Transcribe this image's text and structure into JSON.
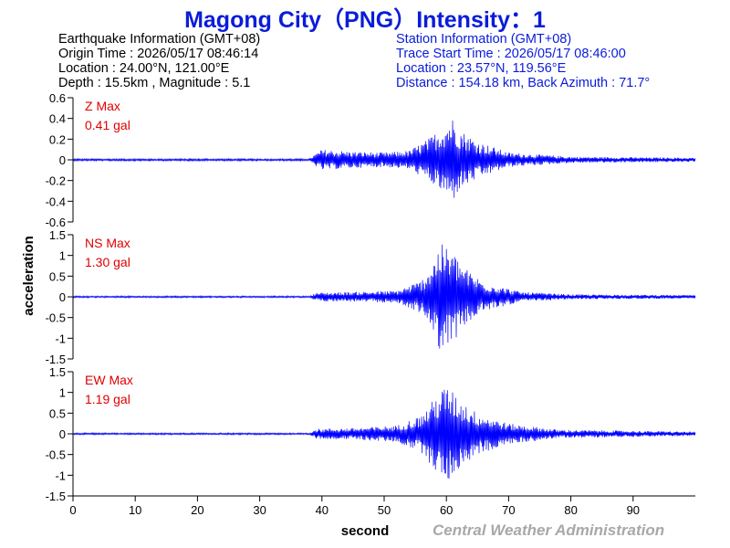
{
  "title": "Magong City（PNG）Intensity：1",
  "earthquake": {
    "header": "Earthquake Information  (GMT+08)",
    "origin_time": "Origin Time : 2026/05/17 08:46:14",
    "location": "Location : 24.00°N, 121.00°E",
    "depth_magnitude": "Depth : 15.5km , Magnitude : 5.1"
  },
  "station": {
    "header": "Station Information  (GMT+08)",
    "trace_start": "Trace Start Time : 2026/05/17 08:46:00",
    "location": "Location : 23.57°N, 119.56°E",
    "distance": "Distance : 154.18 km, Back Azimuth : 71.7°"
  },
  "credit": "Central Weather Administration",
  "colors": {
    "title": "#0a1cd9",
    "trace": "#0000ff",
    "label": "#e00000",
    "credit": "#a8a8a8"
  },
  "chart_data": {
    "type": "line",
    "xlabel": "second",
    "ylabel": "acceleration",
    "xlim": [
      0,
      100
    ],
    "xticks": [
      0,
      10,
      20,
      30,
      40,
      50,
      60,
      70,
      80,
      90
    ],
    "panels": [
      {
        "component": "Z",
        "label": "Z Max",
        "max_text": "0.41 gal",
        "max_value": 0.41,
        "ylim": [
          -0.6,
          0.6
        ],
        "yticks": [
          -0.6,
          -0.4,
          -0.2,
          0,
          0.2,
          0.4,
          0.6
        ],
        "envelope": [
          [
            0,
            0.01
          ],
          [
            38,
            0.01
          ],
          [
            39,
            0.06
          ],
          [
            40,
            0.1
          ],
          [
            45,
            0.08
          ],
          [
            50,
            0.07
          ],
          [
            54,
            0.09
          ],
          [
            57,
            0.2
          ],
          [
            59,
            0.3
          ],
          [
            61,
            0.41
          ],
          [
            62,
            0.3
          ],
          [
            65,
            0.18
          ],
          [
            70,
            0.07
          ],
          [
            80,
            0.03
          ],
          [
            100,
            0.02
          ]
        ]
      },
      {
        "component": "NS",
        "label": "NS Max",
        "max_text": "1.30 gal",
        "max_value": 1.3,
        "ylim": [
          -1.5,
          1.5
        ],
        "yticks": [
          -1.5,
          -1,
          -0.5,
          0,
          0.5,
          1,
          1.5
        ],
        "envelope": [
          [
            0,
            0.02
          ],
          [
            38,
            0.02
          ],
          [
            39,
            0.1
          ],
          [
            45,
            0.12
          ],
          [
            52,
            0.15
          ],
          [
            56,
            0.4
          ],
          [
            58,
            0.9
          ],
          [
            59,
            1.3
          ],
          [
            61,
            1.1
          ],
          [
            63,
            0.7
          ],
          [
            66,
            0.35
          ],
          [
            72,
            0.12
          ],
          [
            80,
            0.06
          ],
          [
            100,
            0.04
          ]
        ]
      },
      {
        "component": "EW",
        "label": "EW Max",
        "max_text": "1.19 gal",
        "max_value": 1.19,
        "ylim": [
          -1.5,
          1.5
        ],
        "yticks": [
          -1.5,
          -1,
          -0.5,
          0,
          0.5,
          1,
          1.5
        ],
        "envelope": [
          [
            0,
            0.02
          ],
          [
            38,
            0.02
          ],
          [
            39,
            0.12
          ],
          [
            45,
            0.14
          ],
          [
            52,
            0.2
          ],
          [
            56,
            0.45
          ],
          [
            58,
            0.85
          ],
          [
            60,
            1.19
          ],
          [
            62,
            0.85
          ],
          [
            65,
            0.5
          ],
          [
            70,
            0.25
          ],
          [
            78,
            0.1
          ],
          [
            100,
            0.05
          ]
        ]
      }
    ]
  }
}
